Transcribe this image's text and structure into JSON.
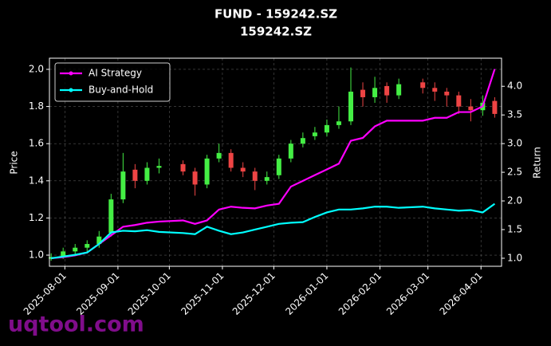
{
  "chart_data": {
    "type": "candlestick",
    "title": "FUND - 159242.SZ",
    "subtitle": "159242.SZ",
    "ylabel": "Price",
    "y2label": "Return",
    "watermark": "uqtool.com",
    "grid": true,
    "legend": "upper left",
    "up_color": "#44ee44",
    "down_color": "#ee4444",
    "x": [
      "2025-07-24",
      "2025-07-31",
      "2025-08-07",
      "2025-08-14",
      "2025-08-21",
      "2025-08-28",
      "2025-09-04",
      "2025-09-11",
      "2025-09-18",
      "2025-09-25",
      "2025-10-09",
      "2025-10-16",
      "2025-10-23",
      "2025-10-30",
      "2025-11-06",
      "2025-11-13",
      "2025-11-20",
      "2025-11-27",
      "2025-12-04",
      "2025-12-11",
      "2025-12-18",
      "2025-12-25",
      "2026-01-01",
      "2026-01-08",
      "2026-01-15",
      "2026-01-22",
      "2026-01-29",
      "2026-02-05",
      "2026-02-12",
      "2026-02-26",
      "2026-03-05",
      "2026-03-12",
      "2026-03-19",
      "2026-03-26",
      "2026-04-02",
      "2026-04-09"
    ],
    "open": [
      0.98,
      0.99,
      1.02,
      1.04,
      1.06,
      1.12,
      1.3,
      1.46,
      1.4,
      1.47,
      1.49,
      1.45,
      1.38,
      1.52,
      1.55,
      1.47,
      1.45,
      1.4,
      1.43,
      1.52,
      1.6,
      1.64,
      1.66,
      1.7,
      1.72,
      1.89,
      1.85,
      1.91,
      1.86,
      1.93,
      1.9,
      1.88,
      1.86,
      1.8,
      1.78,
      1.83
    ],
    "high": [
      1.01,
      1.04,
      1.06,
      1.08,
      1.13,
      1.33,
      1.55,
      1.49,
      1.5,
      1.52,
      1.51,
      1.47,
      1.54,
      1.6,
      1.57,
      1.5,
      1.47,
      1.45,
      1.54,
      1.62,
      1.66,
      1.69,
      1.73,
      1.8,
      2.01,
      1.93,
      1.96,
      1.93,
      1.95,
      1.95,
      1.93,
      1.9,
      1.88,
      1.84,
      1.86,
      1.85
    ],
    "low": [
      0.97,
      0.98,
      1.0,
      1.02,
      1.04,
      1.1,
      1.28,
      1.36,
      1.38,
      1.44,
      1.43,
      1.32,
      1.36,
      1.5,
      1.45,
      1.42,
      1.35,
      1.38,
      1.41,
      1.5,
      1.58,
      1.62,
      1.64,
      1.68,
      1.7,
      1.8,
      1.82,
      1.82,
      1.84,
      1.87,
      1.83,
      1.8,
      1.76,
      1.72,
      1.75,
      1.74
    ],
    "close": [
      0.99,
      1.02,
      1.04,
      1.06,
      1.1,
      1.3,
      1.45,
      1.4,
      1.47,
      1.48,
      1.45,
      1.38,
      1.52,
      1.55,
      1.47,
      1.45,
      1.4,
      1.42,
      1.52,
      1.6,
      1.63,
      1.66,
      1.7,
      1.72,
      1.88,
      1.85,
      1.9,
      1.86,
      1.92,
      1.9,
      1.88,
      1.86,
      1.8,
      1.78,
      1.82,
      1.76
    ],
    "series": [
      {
        "name": "AI Strategy",
        "color": "#ff00ff",
        "axis": "y2",
        "values": [
          1.0,
          1.02,
          1.05,
          1.1,
          1.25,
          1.4,
          1.55,
          1.58,
          1.62,
          1.64,
          1.66,
          1.6,
          1.66,
          1.85,
          1.9,
          1.88,
          1.87,
          1.92,
          1.95,
          2.25,
          2.35,
          2.45,
          2.55,
          2.65,
          3.05,
          3.1,
          3.3,
          3.4,
          3.4,
          3.4,
          3.45,
          3.45,
          3.55,
          3.55,
          3.65,
          4.3
        ]
      },
      {
        "name": "Buy-and-Hold",
        "color": "#00ffff",
        "axis": "y2",
        "values": [
          1.0,
          1.03,
          1.06,
          1.1,
          1.25,
          1.45,
          1.48,
          1.47,
          1.49,
          1.46,
          1.44,
          1.42,
          1.55,
          1.48,
          1.42,
          1.45,
          1.5,
          1.55,
          1.6,
          1.62,
          1.63,
          1.72,
          1.8,
          1.85,
          1.85,
          1.87,
          1.9,
          1.9,
          1.88,
          1.9,
          1.87,
          1.85,
          1.83,
          1.84,
          1.8,
          1.95
        ]
      }
    ],
    "xlim": [
      "2025-07-23",
      "2026-04-13"
    ],
    "xticks": [
      "2025-08-01",
      "2025-09-01",
      "2025-10-01",
      "2025-11-01",
      "2025-12-01",
      "2026-01-01",
      "2026-02-01",
      "2026-03-01",
      "2026-04-01"
    ],
    "ylim": [
      0.94,
      2.06
    ],
    "yticks": [
      {
        "value": 1.0,
        "label": "1.0"
      },
      1.2,
      1.4,
      1.6,
      1.8,
      {
        "value": 2.0,
        "label": "2.0"
      }
    ],
    "y2lim": [
      0.86,
      4.49
    ],
    "y2ticks": [
      {
        "value": 1.0,
        "label": "1.0"
      },
      1.5,
      {
        "value": 2.0,
        "label": "2.0"
      },
      2.5,
      {
        "value": 3.0,
        "label": "3.0"
      },
      3.5,
      {
        "value": 4.0,
        "label": "4.0"
      }
    ]
  }
}
